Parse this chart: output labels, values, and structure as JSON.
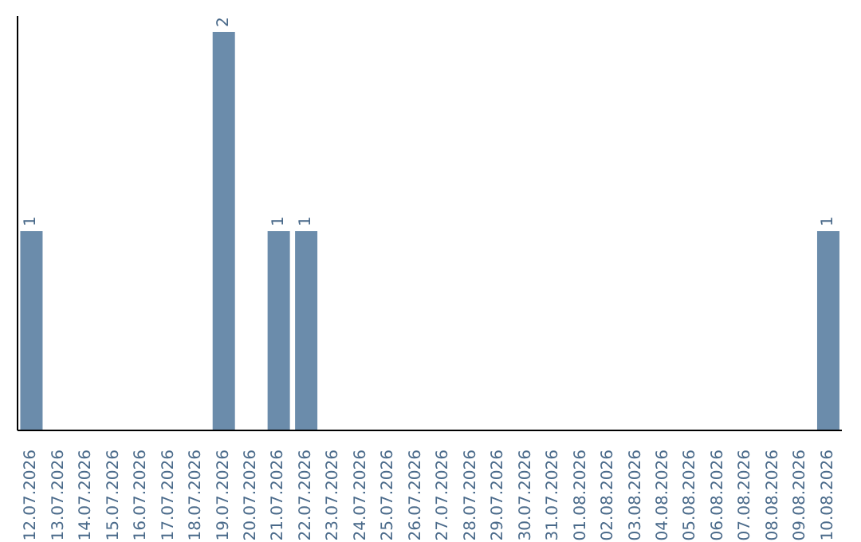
{
  "chart_data": {
    "type": "bar",
    "categories": [
      "12.07.2026",
      "13.07.2026",
      "14.07.2026",
      "15.07.2026",
      "16.07.2026",
      "17.07.2026",
      "18.07.2026",
      "19.07.2026",
      "20.07.2026",
      "21.07.2026",
      "22.07.2026",
      "23.07.2026",
      "24.07.2026",
      "25.07.2026",
      "26.07.2026",
      "27.07.2026",
      "28.07.2026",
      "29.07.2026",
      "30.07.2026",
      "31.07.2026",
      "01.08.2026",
      "02.08.2026",
      "03.08.2026",
      "04.08.2026",
      "05.08.2026",
      "06.08.2026",
      "07.08.2026",
      "08.08.2026",
      "09.08.2026",
      "10.08.2026"
    ],
    "values": [
      1,
      0,
      0,
      0,
      0,
      0,
      0,
      2,
      0,
      1,
      1,
      0,
      0,
      0,
      0,
      0,
      0,
      0,
      0,
      0,
      0,
      0,
      0,
      0,
      0,
      0,
      0,
      0,
      0,
      1
    ],
    "value_labels": [
      "1",
      null,
      null,
      null,
      null,
      null,
      null,
      "2",
      null,
      "1",
      "1",
      null,
      null,
      null,
      null,
      null,
      null,
      null,
      null,
      null,
      null,
      null,
      null,
      null,
      null,
      null,
      null,
      null,
      null,
      "1"
    ],
    "color": "#6b8cab",
    "tick_labels": "x"
  }
}
